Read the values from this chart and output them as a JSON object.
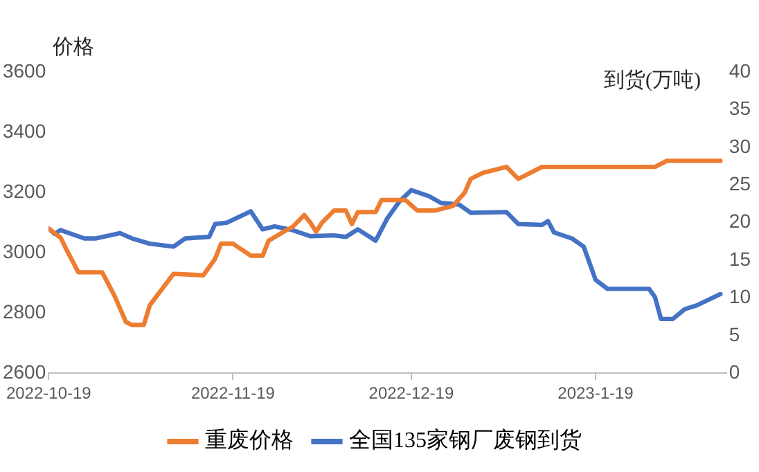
{
  "chart_data": {
    "type": "line",
    "ylabel": "价格",
    "y2label": "到货(万吨)",
    "xlim": [
      "2022-10-19",
      "2023-02-10"
    ],
    "xticks": [
      "2022-10-19",
      "2022-11-19",
      "2022-12-19",
      {
        "value": "2023-01-19",
        "label": "2023-1-19"
      }
    ],
    "ylim": [
      2600,
      3600
    ],
    "yticks": [
      2600,
      2800,
      3000,
      3200,
      3400,
      3600
    ],
    "y2lim": [
      0,
      40
    ],
    "y2ticks": [
      0,
      5,
      10,
      15,
      20,
      25,
      30,
      35,
      40
    ],
    "grid": false,
    "legend": "bottom",
    "marker": "none",
    "line_style": "solid",
    "series": [
      {
        "name": "重废价格",
        "color": "#ed7d31",
        "x": [
          "2022-10-19",
          "2022-10-21",
          "2022-10-22",
          "2022-10-24",
          "2022-10-28",
          "2022-10-30",
          "2022-11-01",
          "2022-11-02",
          "2022-11-04",
          "2022-11-05",
          "2022-11-09",
          "2022-11-14",
          "2022-11-16",
          "2022-11-17",
          "2022-11-19",
          "2022-11-22",
          "2022-11-24",
          "2022-11-25",
          "2022-11-28",
          "2022-11-29",
          "2022-12-01",
          "2022-12-02",
          "2022-12-03",
          "2022-12-04",
          "2022-12-06",
          "2022-12-08",
          "2022-12-09",
          "2022-12-10",
          "2022-12-13",
          "2022-12-14",
          "2022-12-18",
          "2022-12-20",
          "2022-12-23",
          "2022-12-26",
          "2022-12-28",
          "2022-12-29",
          "2022-12-31",
          "2023-01-04",
          "2023-01-06",
          "2023-01-10",
          "2023-01-29",
          "2023-01-31",
          "2023-02-09"
        ],
        "values": [
          3080,
          3050,
          3010,
          2935,
          2935,
          2860,
          2770,
          2760,
          2760,
          2825,
          2930,
          2925,
          2980,
          3030,
          3030,
          2990,
          2990,
          3040,
          3075,
          3085,
          3125,
          3100,
          3070,
          3100,
          3140,
          3140,
          3095,
          3135,
          3135,
          3175,
          3175,
          3140,
          3140,
          3155,
          3200,
          3245,
          3265,
          3285,
          3245,
          3285,
          3285,
          3305,
          3305
        ]
      },
      {
        "name": "全国135家钢厂废钢到货",
        "color": "#4472c4",
        "axis": "y2",
        "x": [
          "2022-10-19",
          "2022-10-20",
          "2022-10-21",
          "2022-10-25",
          "2022-10-27",
          "2022-10-31",
          "2022-11-02",
          "2022-11-05",
          "2022-11-09",
          "2022-11-11",
          "2022-11-15",
          "2022-11-16",
          "2022-11-18",
          "2022-11-22",
          "2022-11-24",
          "2022-11-26",
          "2022-11-29",
          "2022-12-02",
          "2022-12-06",
          "2022-12-08",
          "2022-12-10",
          "2022-12-13",
          "2022-12-15",
          "2022-12-17",
          "2022-12-19",
          "2022-12-22",
          "2022-12-24",
          "2022-12-27",
          "2022-12-29",
          "2023-01-04",
          "2023-01-06",
          "2023-01-10",
          "2023-01-11",
          "2023-01-12",
          "2023-01-15",
          "2023-01-17",
          "2023-01-19",
          "2023-01-21",
          "2023-01-28",
          "2023-01-29",
          "2023-01-30",
          "2023-02-01",
          "2023-02-03",
          "2023-02-05",
          "2023-02-09"
        ],
        "values": [
          19.2,
          18.5,
          19,
          17.9,
          17.9,
          18.6,
          17.9,
          17.2,
          16.8,
          17.9,
          18.1,
          19.8,
          20,
          21.5,
          19.1,
          19.5,
          19,
          18.2,
          18.3,
          18.1,
          19.1,
          17.6,
          20.6,
          22.8,
          24.3,
          23.5,
          22.6,
          22.4,
          21.3,
          21.4,
          19.8,
          19.7,
          20.2,
          18.7,
          17.9,
          16.8,
          12.4,
          11.2,
          11.2,
          10.1,
          7.2,
          7.2,
          8.5,
          9,
          10.5
        ]
      }
    ]
  }
}
